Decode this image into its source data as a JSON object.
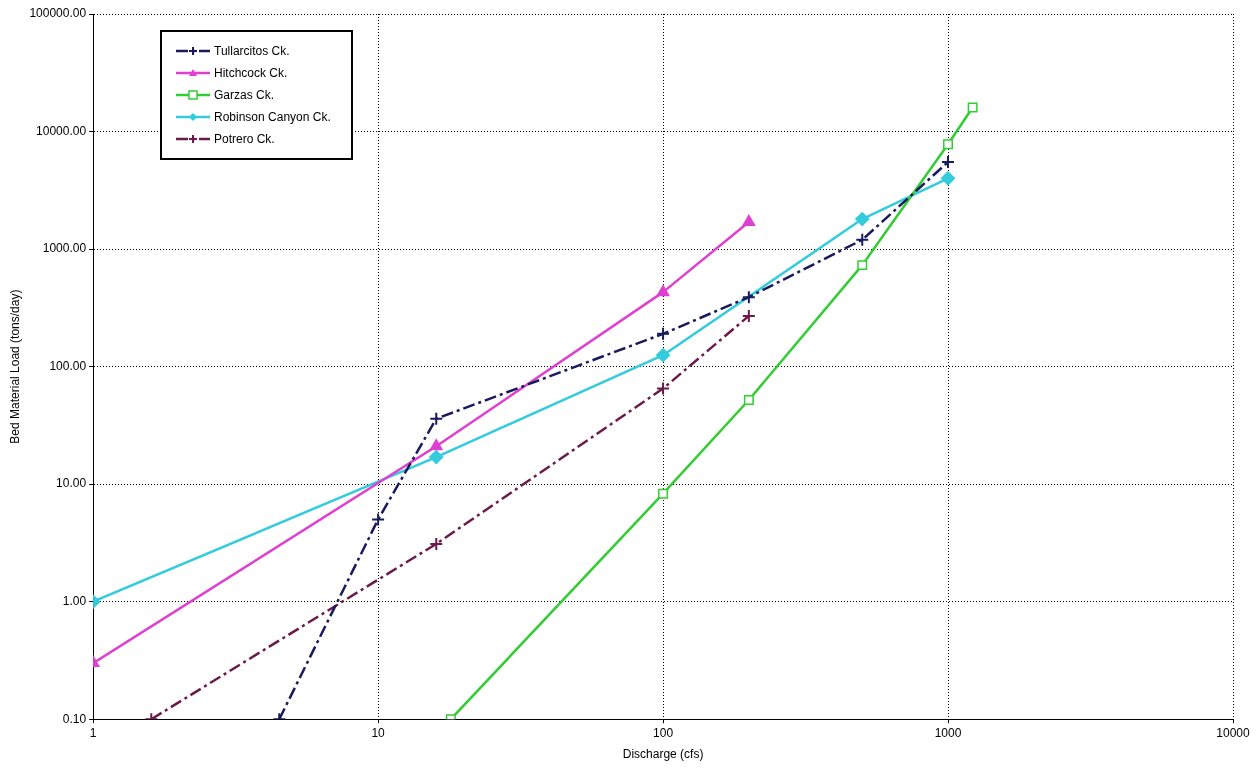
{
  "chart_data": {
    "type": "line",
    "xlabel": "Discharge (cfs)",
    "ylabel": "Bed Material Load (tons/day)",
    "log": "xy",
    "grid": true,
    "legend": "top left",
    "xlim": [
      1,
      10000
    ],
    "xticks": [
      1,
      10,
      100,
      1000,
      10000
    ],
    "ylim": [
      0.1,
      100000
    ],
    "yticks": [
      {
        "value": 0.1,
        "label": "0.10"
      },
      {
        "value": 1,
        "label": "1.00"
      },
      {
        "value": 10,
        "label": "10.00"
      },
      {
        "value": 100,
        "label": "100.00"
      },
      {
        "value": 1000,
        "label": "1000.00"
      },
      {
        "value": 10000,
        "label": "10000.00"
      },
      {
        "value": 100000,
        "label": "100000.00"
      }
    ],
    "series": [
      {
        "name": "Tullarcitos Ck.",
        "color": "#1a1a5e",
        "marker": "cross",
        "line_style": "dashed",
        "x": [
          4.5,
          10,
          16,
          100,
          200,
          500,
          1000
        ],
        "values": [
          0.1,
          5,
          36,
          190,
          390,
          1200,
          5500
        ]
      },
      {
        "name": "Hitchcock Ck.",
        "color": "#e040d0",
        "marker": "triangle",
        "line_style": "solid",
        "x": [
          1,
          16,
          100,
          200
        ],
        "values": [
          0.3,
          21,
          430,
          1700
        ]
      },
      {
        "name": "Garzas Ck.",
        "color": "#33cc33",
        "marker": "square",
        "line_style": "solid",
        "x": [
          18,
          100,
          200,
          500,
          1000,
          1220
        ],
        "values": [
          0.1,
          8.3,
          52,
          730,
          7800,
          16000
        ]
      },
      {
        "name": "Robinson Canyon Ck.",
        "color": "#33ccdd",
        "marker": "diamond",
        "line_style": "solid",
        "x": [
          1,
          16,
          100,
          500,
          1000
        ],
        "values": [
          1,
          17,
          125,
          1800,
          4000
        ]
      },
      {
        "name": "Potrero Ck.",
        "color": "#6b1a4a",
        "marker": "cross",
        "line_style": "dashed",
        "x": [
          1.6,
          16,
          100,
          200
        ],
        "values": [
          0.1,
          3.1,
          65,
          270
        ]
      }
    ]
  }
}
